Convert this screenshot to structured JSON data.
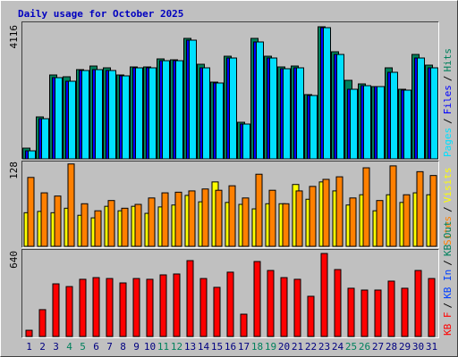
{
  "chart_data": {
    "type": "bar",
    "title": "Daily usage for October 2025",
    "categories": [
      "1",
      "2",
      "3",
      "4",
      "5",
      "6",
      "7",
      "8",
      "9",
      "10",
      "11",
      "12",
      "13",
      "14",
      "15",
      "16",
      "17",
      "18",
      "19",
      "20",
      "21",
      "22",
      "23",
      "24",
      "25",
      "26",
      "27",
      "28",
      "29",
      "30",
      "31"
    ],
    "category_colors": [
      "#000080",
      "#000080",
      "#000080",
      "#00805c",
      "#00805c",
      "#000080",
      "#000080",
      "#000080",
      "#000080",
      "#000080",
      "#00805c",
      "#00805c",
      "#000080",
      "#000080",
      "#000080",
      "#000080",
      "#000080",
      "#00805c",
      "#00805c",
      "#000080",
      "#000080",
      "#000080",
      "#000080",
      "#000080",
      "#00805c",
      "#00805c",
      "#000080",
      "#000080",
      "#000080",
      "#000080",
      "#000080"
    ],
    "legend_separator": "/",
    "panels": [
      {
        "ylim": [
          0,
          4116
        ],
        "yticks": [
          4116
        ],
        "series": [
          {
            "name": "Pages",
            "color": "#00e0ff",
            "values": [
              224,
              1232,
              2520,
              2408,
              2744,
              2772,
              2744,
              2576,
              2828,
              2828,
              3052,
              3052,
              3696,
              2828,
              2352,
              3136,
              1064,
              3640,
              3136,
              2800,
              2828,
              1960,
              4088,
              3248,
              2156,
              2268,
              2240,
              2688,
              2128,
              3136,
              2828
            ]
          },
          {
            "name": "Files",
            "color": "#0000ff",
            "values": [
              224,
              1232,
              2520,
              2408,
              2744,
              2772,
              2744,
              2576,
              2828,
              2828,
              3052,
              3052,
              3696,
              2828,
              2352,
              3136,
              1064,
              3640,
              3136,
              2800,
              2828,
              1960,
              4088,
              3248,
              2156,
              2268,
              2240,
              2688,
              2128,
              3136,
              2828
            ]
          },
          {
            "name": "Hits",
            "color": "#00805c",
            "values": [
              308,
              1288,
              2604,
              2548,
              2772,
              2884,
              2828,
              2604,
              2856,
              2856,
              3108,
              3080,
              3752,
              2940,
              2380,
              3192,
              1120,
              3752,
              3192,
              2856,
              2884,
              1988,
              4116,
              3332,
              2436,
              2324,
              2240,
              2828,
              2156,
              3248,
              2912
            ]
          }
        ]
      },
      {
        "ylim": [
          0,
          128
        ],
        "yticks": [
          128
        ],
        "series": [
          {
            "name": "Sites",
            "color": "#ff8000",
            "values": [
              106,
              82,
              77,
              127,
              65,
              54,
              70,
              58,
              64,
              74,
              82,
              83,
              85,
              88,
              86,
              93,
              74,
              111,
              86,
              65,
              85,
              92,
              103,
              107,
              74,
              121,
              70,
              124,
              79,
              115,
              109
            ]
          },
          {
            "name": "Visits",
            "color": "#ffff00",
            "values": [
              51,
              53,
              51,
              58,
              47,
              43,
              61,
              54,
              61,
              50,
              60,
              63,
              78,
              68,
              99,
              67,
              64,
              57,
              65,
              65,
              95,
              72,
              99,
              85,
              63,
              79,
              54,
              79,
              67,
              82,
              79
            ]
          }
        ]
      },
      {
        "ylim": [
          0,
          640
        ],
        "yticks": [
          640
        ],
        "series": [
          {
            "name": "KB F",
            "color": "#ff0000",
            "values": [
              41,
              200,
              399,
              378,
              434,
              447,
              440,
              406,
              440,
              434,
              468,
              475,
              578,
              440,
              372,
              489,
              165,
              571,
              502,
              447,
              434,
              303,
              633,
              509,
              365,
              351,
              351,
              420,
              365,
              502,
              440
            ]
          },
          {
            "name": "KB In",
            "color": "#0040ff"
          },
          {
            "name": "KB Out",
            "color": "#00805c"
          }
        ]
      }
    ]
  }
}
